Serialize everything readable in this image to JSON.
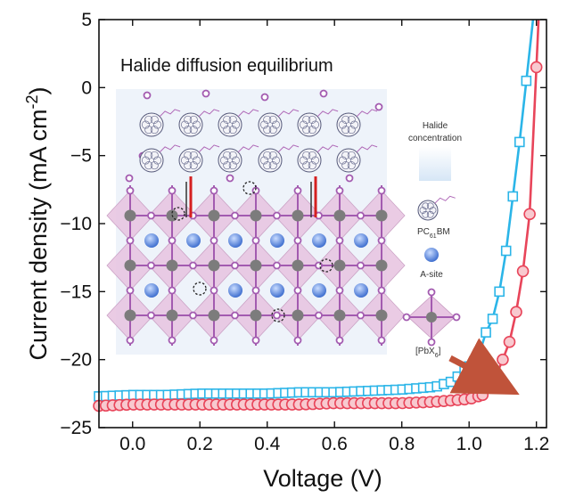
{
  "chart_data": {
    "type": "line",
    "xlabel": "Voltage (V)",
    "ylabel": "Current density (mA cm",
    "ylabel_sup": "-2",
    "ylabel_close": ")",
    "xlim": [
      -0.1,
      1.23
    ],
    "ylim": [
      -25,
      5
    ],
    "xticks": [
      0.0,
      0.2,
      0.4,
      0.6,
      0.8,
      1.0,
      1.2
    ],
    "xtick_labels": [
      "0.0",
      "0.2",
      "0.4",
      "0.6",
      "0.8",
      "1.0",
      "1.2"
    ],
    "yticks": [
      5,
      0,
      -5,
      -10,
      -15,
      -20,
      -25
    ],
    "ytick_labels": [
      "5",
      "0",
      "−5",
      "−10",
      "−15",
      "−20",
      "−25"
    ],
    "grid": false,
    "series": [
      {
        "color": "#2bb5e8",
        "marker": "square",
        "x": [
          -0.1,
          0.0,
          0.1,
          0.2,
          0.3,
          0.4,
          0.5,
          0.6,
          0.7,
          0.8,
          0.85,
          0.9,
          0.95,
          1.0,
          1.03,
          1.05,
          1.07,
          1.09,
          1.11,
          1.13,
          1.15,
          1.17
        ],
        "y": [
          -22.7,
          -22.6,
          -22.6,
          -22.5,
          -22.5,
          -22.5,
          -22.4,
          -22.4,
          -22.3,
          -22.2,
          -22.1,
          -22.0,
          -21.6,
          -20.5,
          -19.6,
          -18.0,
          -17.0,
          -15.0,
          -12.0,
          -8.0,
          -4.0,
          0.5
        ]
      },
      {
        "color": "#e8455a",
        "marker": "circle",
        "x": [
          -0.1,
          0.0,
          0.1,
          0.2,
          0.3,
          0.4,
          0.5,
          0.6,
          0.7,
          0.8,
          0.9,
          0.95,
          1.0,
          1.04,
          1.07,
          1.1,
          1.12,
          1.14,
          1.16,
          1.18,
          1.2
        ],
        "y": [
          -23.4,
          -23.3,
          -23.3,
          -23.3,
          -23.3,
          -23.3,
          -23.3,
          -23.2,
          -23.2,
          -23.2,
          -23.1,
          -23.0,
          -22.9,
          -22.6,
          -21.8,
          -20.0,
          -18.7,
          -16.5,
          -13.5,
          -9.3,
          1.5
        ]
      }
    ],
    "annotations": {
      "arrow_color": "#c0533a"
    }
  },
  "inset": {
    "title": "Halide diffusion equilibrium",
    "legend_halide": [
      "Halide",
      "concentration"
    ],
    "legend_pcbm": "PC",
    "legend_pcbm_sub": "61",
    "legend_pcbm_tail": "BM",
    "legend_asite": "A-site",
    "legend_octa": "[PbX",
    "legend_octa_sub": "6",
    "legend_octa_sup": "]",
    "colors": {
      "background": "#eef3fa",
      "octahedron": "#e8c6e2",
      "halide": "#a35bb0",
      "lead": "#7c7c7c",
      "asite": "#4c7ed8",
      "red_bar": "#d52020"
    }
  }
}
